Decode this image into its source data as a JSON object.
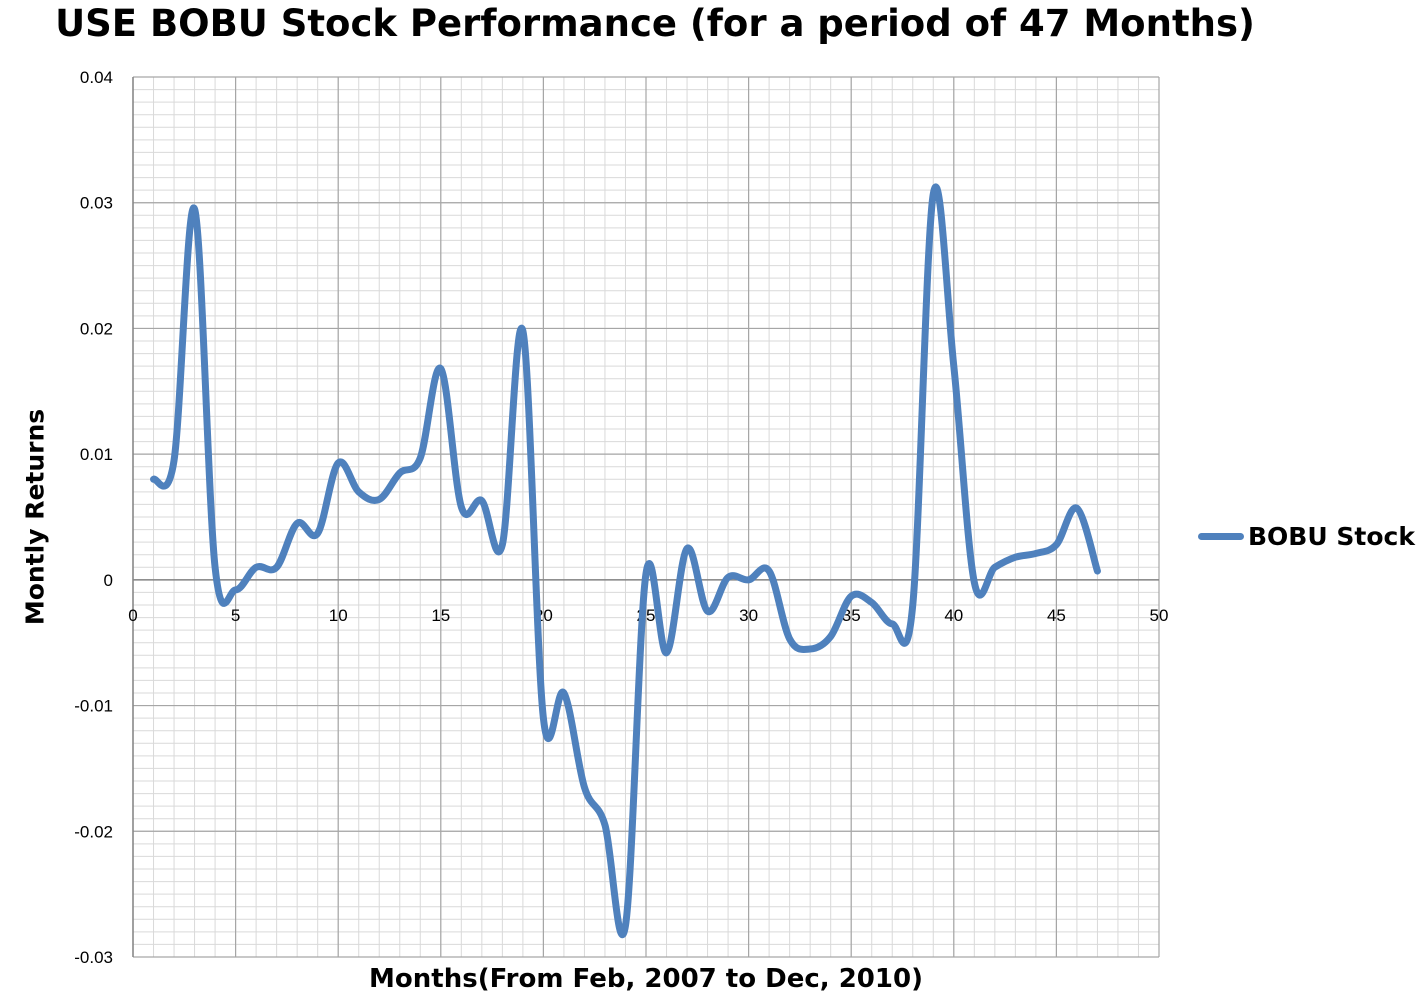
{
  "chart_data": {
    "type": "line",
    "title": "USE BOBU Stock Performance (for a period of 47 Months)",
    "xlabel": "Months(From Feb, 2007 to Dec, 2010)",
    "ylabel": "Montly Returns",
    "xlim": [
      0,
      50
    ],
    "ylim": [
      -0.03,
      0.04
    ],
    "x_ticks": [
      0,
      5,
      10,
      15,
      20,
      25,
      30,
      35,
      40,
      45,
      50
    ],
    "y_ticks": [
      0.04,
      0.03,
      0.02,
      0.01,
      0,
      -0.01,
      -0.02,
      -0.03
    ],
    "x_tick_labels": [
      "0",
      "5",
      "10",
      "15",
      "20",
      "25",
      "30",
      "35",
      "40",
      "45",
      "50"
    ],
    "y_tick_labels": [
      "0.04",
      "0.03",
      "0.02",
      "0.01",
      "0",
      "-0.01",
      "-0.02",
      "-0.03"
    ],
    "grid": true,
    "smooth": true,
    "legend_position": "right",
    "series": [
      {
        "name": "BOBU Stock",
        "color": "#4f81bd",
        "x": [
          1,
          2,
          3,
          4,
          5,
          6,
          7,
          8,
          9,
          10,
          11,
          12,
          13,
          14,
          15,
          16,
          17,
          18,
          19,
          20,
          21,
          22,
          23,
          24,
          25,
          26,
          27,
          28,
          29,
          30,
          31,
          32,
          33,
          34,
          35,
          36,
          37,
          38,
          39,
          40,
          41,
          42,
          43,
          44,
          45,
          46,
          47
        ],
        "values": [
          0.008,
          0.0095,
          0.0295,
          0.001,
          -0.0008,
          0.001,
          0.001,
          0.0045,
          0.0037,
          0.0093,
          0.007,
          0.0064,
          0.0085,
          0.0097,
          0.0168,
          0.0058,
          0.0063,
          0.0028,
          0.0198,
          -0.011,
          -0.009,
          -0.0165,
          -0.0195,
          -0.0275,
          0.0005,
          -0.0058,
          0.0025,
          -0.0025,
          0.0002,
          0.0,
          0.0007,
          -0.0047,
          -0.0055,
          -0.0045,
          -0.0013,
          -0.0018,
          -0.0035,
          -0.002,
          0.0307,
          0.017,
          -0.0002,
          0.001,
          0.0018,
          0.0021,
          0.0028,
          0.0057,
          0.0007
        ]
      }
    ]
  }
}
